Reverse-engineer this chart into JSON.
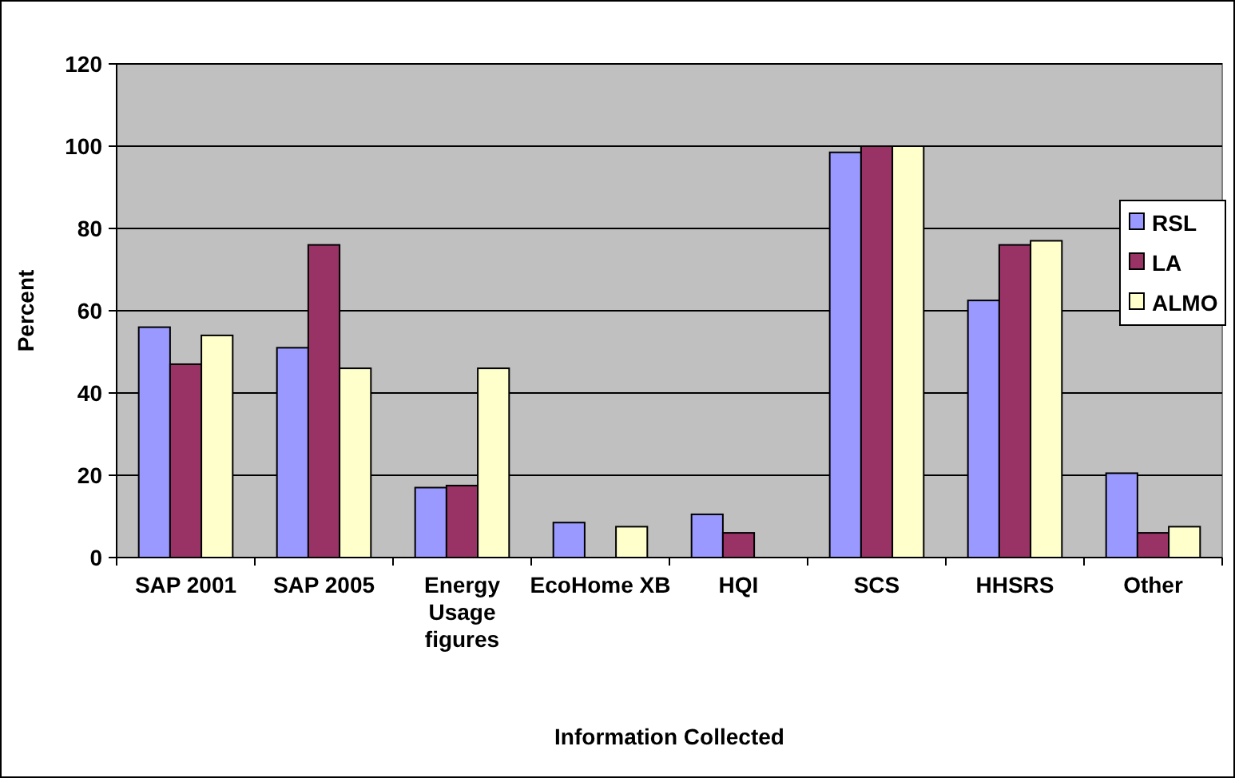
{
  "chart_data": {
    "type": "bar",
    "xlabel": "Information Collected",
    "ylabel": "Percent",
    "categories": [
      "SAP 2001",
      "SAP 2005",
      "Energy Usage figures",
      "EcoHome XB",
      "HQI",
      "SCS",
      "HHSRS",
      "Other"
    ],
    "series": [
      {
        "name": "RSL",
        "color": "#9999ff",
        "values": [
          56,
          51,
          17,
          8.5,
          10.5,
          98.5,
          62.5,
          20.5
        ]
      },
      {
        "name": "LA",
        "color": "#993366",
        "values": [
          47,
          76,
          17.5,
          0,
          6,
          100,
          76,
          6
        ]
      },
      {
        "name": "ALMO",
        "color": "#ffffcc",
        "values": [
          54,
          46,
          46,
          7.5,
          0,
          100,
          77,
          7.5
        ]
      }
    ],
    "ylim": [
      0,
      120
    ],
    "yticks": [
      0,
      20,
      40,
      60,
      80,
      100,
      120
    ],
    "grid": "y",
    "legend": "right"
  }
}
